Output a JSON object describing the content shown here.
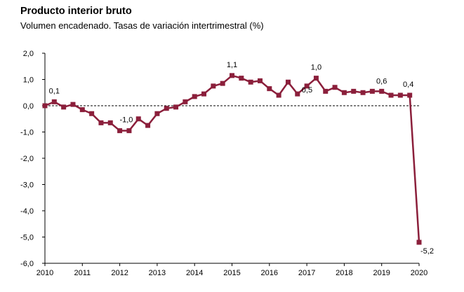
{
  "chart_data": {
    "type": "line",
    "title": "Producto interior bruto",
    "subtitle": "Volumen encadenado. Tasas de variación intertrimestral (%)",
    "xlabel": "",
    "ylabel": "",
    "ylim": [
      -6.0,
      2.0
    ],
    "yticks": [
      2.0,
      1.0,
      0.0,
      -1.0,
      -2.0,
      -3.0,
      -4.0,
      -5.0,
      -6.0
    ],
    "ytick_labels": [
      "2,0",
      "1,0",
      "0,0",
      "-1,0",
      "-2,0",
      "-3,0",
      "-4,0",
      "-5,0",
      "-6,0"
    ],
    "xtick_labels": [
      "2010",
      "2011",
      "2012",
      "2013",
      "2014",
      "2015",
      "2016",
      "2017",
      "2018",
      "2019",
      "2020"
    ],
    "grid": false,
    "zero_line": "dashed",
    "color": "#8b1f3b",
    "series": [
      {
        "quarters": [
          "2010T1",
          "2010T2",
          "2010T3",
          "2010T4",
          "2011T1",
          "2011T2",
          "2011T3",
          "2011T4",
          "2012T1",
          "2012T2",
          "2012T3",
          "2012T4",
          "2013T1",
          "2013T2",
          "2013T3",
          "2013T4",
          "2014T1",
          "2014T2",
          "2014T3",
          "2014T4",
          "2015T1",
          "2015T2",
          "2015T3",
          "2015T4",
          "2016T1",
          "2016T2",
          "2016T3",
          "2016T4",
          "2017T1",
          "2017T2",
          "2017T3",
          "2017T4",
          "2018T1",
          "2018T2",
          "2018T3",
          "2018T4",
          "2019T1",
          "2019T2",
          "2019T3",
          "2019T4",
          "2020T1"
        ],
        "values": [
          0.0,
          0.15,
          -0.05,
          0.05,
          -0.15,
          -0.3,
          -0.65,
          -0.65,
          -0.95,
          -0.95,
          -0.5,
          -0.75,
          -0.3,
          -0.1,
          -0.05,
          0.15,
          0.35,
          0.45,
          0.75,
          0.85,
          1.15,
          1.05,
          0.9,
          0.95,
          0.65,
          0.4,
          0.9,
          0.45,
          0.75,
          1.05,
          0.55,
          0.7,
          0.5,
          0.55,
          0.5,
          0.55,
          0.55,
          0.4,
          0.4,
          0.4,
          -5.2
        ]
      }
    ],
    "annotations": [
      {
        "quarter": "2010T2",
        "text": "0,1"
      },
      {
        "quarter": "2012T2",
        "text": "-1,0"
      },
      {
        "quarter": "2015T1",
        "text": "1,1"
      },
      {
        "quarter": "2016T4",
        "text": "0,5"
      },
      {
        "quarter": "2017T2",
        "text": "1,0"
      },
      {
        "quarter": "2019T1",
        "text": "0,6"
      },
      {
        "quarter": "2019T4",
        "text": "0,4"
      },
      {
        "quarter": "2020T1",
        "text": "-5,2"
      }
    ]
  }
}
